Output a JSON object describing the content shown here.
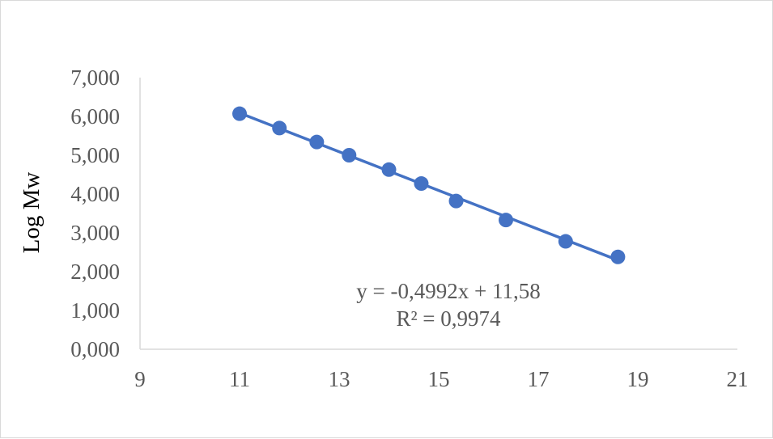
{
  "chart_data": {
    "type": "scatter",
    "title": "",
    "xlabel": "",
    "ylabel": "Log Mw",
    "xlim": [
      9,
      21
    ],
    "ylim": [
      0,
      7
    ],
    "x_ticks": [
      9,
      11,
      13,
      15,
      17,
      19,
      21
    ],
    "x_tick_labels": [
      "9",
      "11",
      "13",
      "15",
      "17",
      "19",
      "21"
    ],
    "y_ticks": [
      0,
      1,
      2,
      3,
      4,
      5,
      6,
      7
    ],
    "y_tick_labels": [
      "0,000",
      "1,000",
      "2,000",
      "3,000",
      "4,000",
      "5,000",
      "6,000",
      "7,000"
    ],
    "grid": false,
    "legend": "none",
    "series": [
      {
        "color": "#4472c4",
        "points": [
          {
            "x": 11.0,
            "y": 6.07
          },
          {
            "x": 11.8,
            "y": 5.7
          },
          {
            "x": 12.55,
            "y": 5.34
          },
          {
            "x": 13.2,
            "y": 5.0
          },
          {
            "x": 14.0,
            "y": 4.63
          },
          {
            "x": 14.65,
            "y": 4.27
          },
          {
            "x": 15.35,
            "y": 3.82
          },
          {
            "x": 16.35,
            "y": 3.33
          },
          {
            "x": 17.55,
            "y": 2.78
          },
          {
            "x": 18.6,
            "y": 2.38
          }
        ]
      }
    ],
    "trendline": {
      "type": "linear",
      "slope": -0.4992,
      "intercept": 11.58,
      "color": "#4472c4",
      "equation_label": "y = -0,4992x + 11,58",
      "r2_label": "R² = 0,9974"
    },
    "axis_color": "#d9d9d9",
    "text_color": "#595959"
  }
}
